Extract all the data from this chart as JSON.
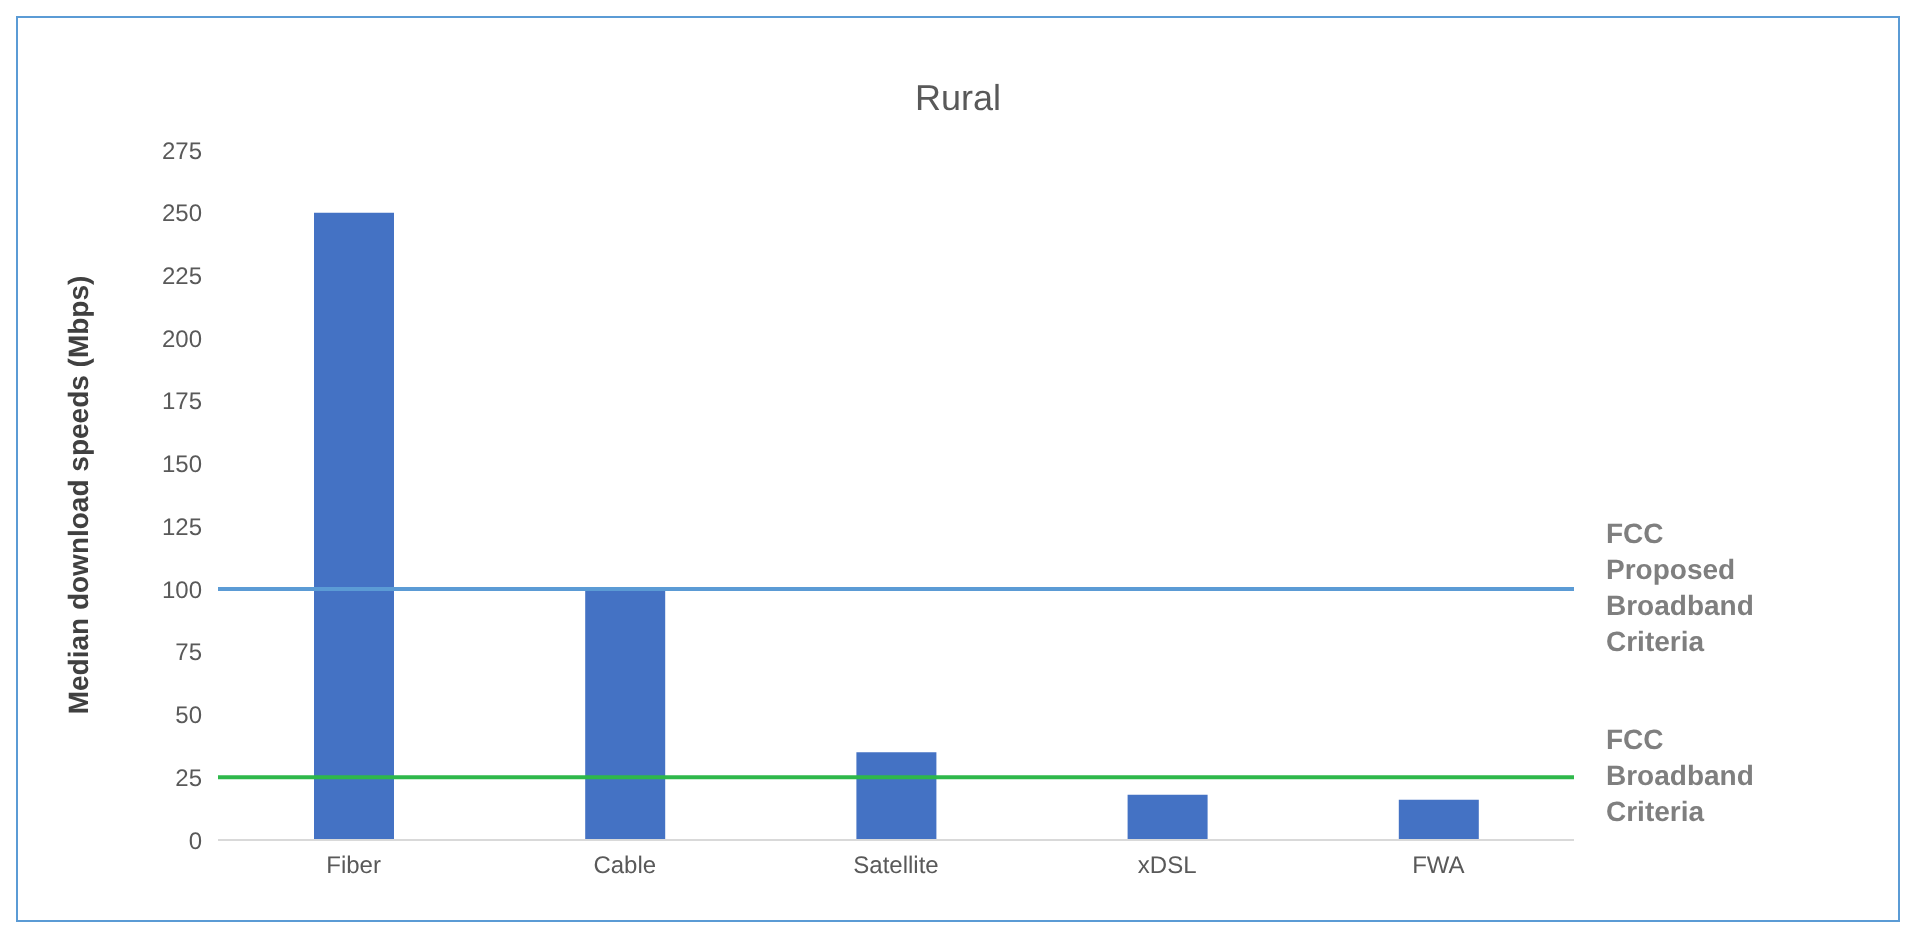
{
  "chart_data": {
    "type": "bar",
    "title": "Rural",
    "ylabel": "Median download speeds (Mbps)",
    "categories": [
      "Fiber",
      "Cable",
      "Satellite",
      "xDSL",
      "FWA"
    ],
    "values": [
      250,
      100,
      35,
      18,
      16
    ],
    "color": "#4472c4",
    "ylim": [
      0,
      275
    ],
    "yticks": [
      0,
      25,
      50,
      75,
      100,
      125,
      150,
      175,
      200,
      225,
      250,
      275
    ],
    "grid": false,
    "ref_lines": [
      {
        "axis": "y",
        "value": 100,
        "label": "FCC Proposed Broadband Criteria",
        "color": "#5b9bd5"
      },
      {
        "axis": "y",
        "value": 25,
        "label": "FCC Broadband Criteria",
        "color": "#2eb84b"
      }
    ]
  }
}
